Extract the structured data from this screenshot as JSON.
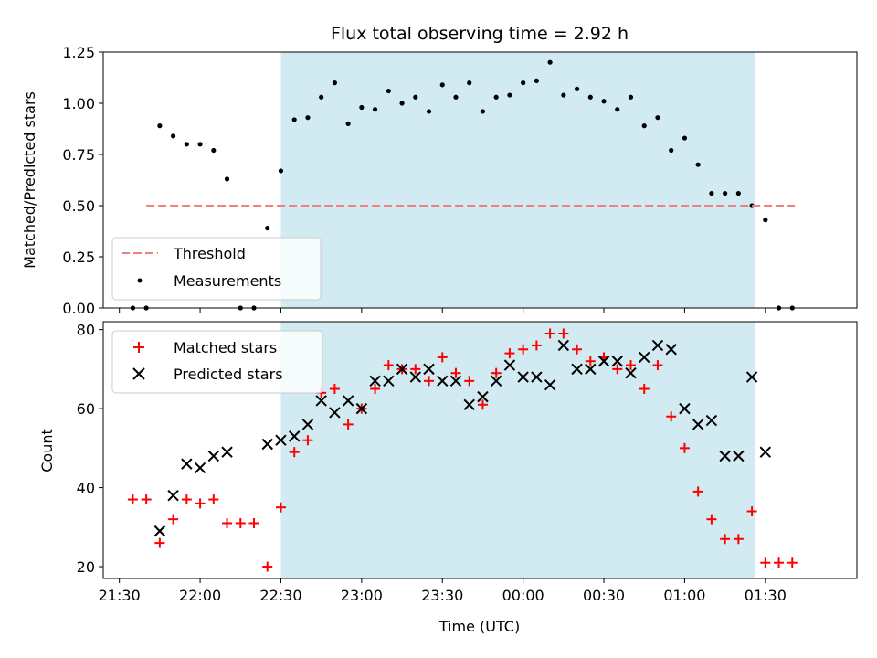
{
  "title": "Flux total observing time = 2.92 h",
  "colors": {
    "shade": "#add8e6",
    "threshold": "#f08080",
    "measurements": "#000000",
    "matched": "#ff0000",
    "predicted": "#000000"
  },
  "chart_data": [
    {
      "type": "scatter",
      "ylabel": "Matched/Predicted stars",
      "ylim": [
        0,
        1.25
      ],
      "yticks": [
        "0.00",
        "0.25",
        "0.50",
        "0.75",
        "1.00",
        "1.25"
      ],
      "ytick_values": [
        0,
        0.25,
        0.5,
        0.75,
        1.0,
        1.25
      ],
      "xlim": [
        "21:24",
        "02:04"
      ],
      "shaded_interval": [
        "22:30",
        "01:26"
      ],
      "legend": {
        "position": "lower left",
        "entries": [
          "Threshold",
          "Measurements"
        ]
      },
      "threshold": {
        "name": "Threshold",
        "y": 0.5,
        "x": [
          "21:40",
          "01:41"
        ]
      },
      "series": [
        {
          "name": "Measurements",
          "x": [
            "21:35",
            "21:40",
            "21:45",
            "21:50",
            "21:55",
            "22:00",
            "22:05",
            "22:10",
            "22:15",
            "22:20",
            "22:25",
            "22:30",
            "22:35",
            "22:40",
            "22:45",
            "22:50",
            "22:55",
            "23:00",
            "23:05",
            "23:10",
            "23:15",
            "23:20",
            "23:25",
            "23:30",
            "23:35",
            "23:40",
            "23:45",
            "23:50",
            "23:55",
            "00:00",
            "00:05",
            "00:10",
            "00:15",
            "00:20",
            "00:25",
            "00:30",
            "00:35",
            "00:40",
            "00:45",
            "00:50",
            "00:55",
            "01:00",
            "01:05",
            "01:10",
            "01:15",
            "01:20",
            "01:25",
            "01:30",
            "01:35",
            "01:40"
          ],
          "y": [
            0.0,
            0.0,
            0.89,
            0.84,
            0.8,
            0.8,
            0.77,
            0.63,
            0.0,
            0.0,
            0.39,
            0.67,
            0.92,
            0.93,
            1.03,
            1.1,
            0.9,
            0.98,
            0.97,
            1.06,
            1.0,
            1.03,
            0.96,
            1.09,
            1.03,
            1.1,
            0.96,
            1.03,
            1.04,
            1.1,
            1.11,
            1.2,
            1.04,
            1.07,
            1.03,
            1.01,
            0.97,
            1.03,
            0.89,
            0.93,
            0.77,
            0.83,
            0.7,
            0.56,
            0.56,
            0.56,
            0.5,
            0.43,
            0.0,
            0.0
          ]
        }
      ]
    },
    {
      "type": "scatter",
      "xlabel": "Time (UTC)",
      "ylabel": "Count",
      "ylim": [
        17,
        82
      ],
      "yticks": [
        "20",
        "40",
        "60",
        "80"
      ],
      "ytick_values": [
        20,
        40,
        60,
        80
      ],
      "xlim": [
        "21:24",
        "02:04"
      ],
      "xticks": [
        "21:30",
        "22:00",
        "22:30",
        "23:00",
        "23:30",
        "00:00",
        "00:30",
        "01:00",
        "01:30"
      ],
      "shaded_interval": [
        "22:30",
        "01:26"
      ],
      "legend": {
        "position": "upper left",
        "entries": [
          "Matched stars",
          "Predicted stars"
        ]
      },
      "series": [
        {
          "name": "Matched stars",
          "marker": "+",
          "x": [
            "21:35",
            "21:40",
            "21:45",
            "21:50",
            "21:55",
            "22:00",
            "22:05",
            "22:10",
            "22:15",
            "22:20",
            "22:25",
            "22:30",
            "22:35",
            "22:40",
            "22:45",
            "22:50",
            "22:55",
            "23:00",
            "23:05",
            "23:10",
            "23:15",
            "23:20",
            "23:25",
            "23:30",
            "23:35",
            "23:40",
            "23:45",
            "23:50",
            "23:55",
            "00:00",
            "00:05",
            "00:10",
            "00:15",
            "00:20",
            "00:25",
            "00:30",
            "00:35",
            "00:40",
            "00:45",
            "00:50",
            "00:55",
            "01:00",
            "01:05",
            "01:10",
            "01:15",
            "01:20",
            "01:25",
            "01:30",
            "01:35",
            "01:40"
          ],
          "y": [
            37,
            37,
            26,
            32,
            37,
            36,
            37,
            31,
            31,
            31,
            20,
            35,
            49,
            52,
            64,
            65,
            56,
            60,
            65,
            71,
            70,
            70,
            67,
            73,
            69,
            67,
            61,
            69,
            74,
            75,
            76,
            79,
            79,
            75,
            72,
            73,
            70,
            71,
            65,
            71,
            58,
            50,
            39,
            32,
            27,
            27,
            34,
            21,
            21,
            21
          ]
        },
        {
          "name": "Predicted stars",
          "marker": "x",
          "x": [
            "21:45",
            "21:50",
            "21:55",
            "22:00",
            "22:05",
            "22:10",
            "22:25",
            "22:30",
            "22:35",
            "22:40",
            "22:45",
            "22:50",
            "22:55",
            "23:00",
            "23:05",
            "23:10",
            "23:15",
            "23:20",
            "23:25",
            "23:30",
            "23:35",
            "23:40",
            "23:45",
            "23:50",
            "23:55",
            "00:00",
            "00:05",
            "00:10",
            "00:15",
            "00:20",
            "00:25",
            "00:30",
            "00:35",
            "00:40",
            "00:45",
            "00:50",
            "00:55",
            "01:00",
            "01:05",
            "01:10",
            "01:15",
            "01:20",
            "01:25",
            "01:30"
          ],
          "y": [
            29,
            38,
            46,
            45,
            48,
            49,
            51,
            52,
            53,
            56,
            62,
            59,
            62,
            60,
            67,
            67,
            70,
            68,
            70,
            67,
            67,
            61,
            63,
            67,
            71,
            68,
            68,
            66,
            76,
            70,
            70,
            72,
            72,
            69,
            73,
            76,
            75,
            60,
            56,
            57,
            48,
            48,
            68,
            49
          ]
        }
      ]
    }
  ]
}
